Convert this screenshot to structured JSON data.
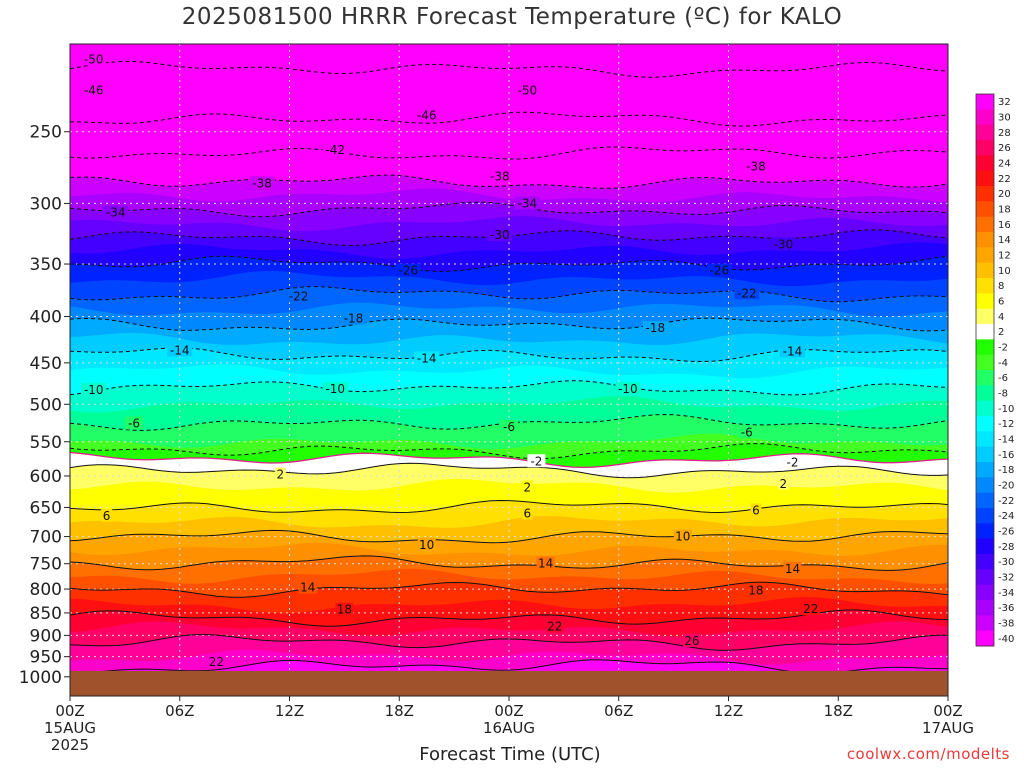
{
  "chart_data": {
    "type": "heatmap",
    "title": "2025081500 HRRR Forecast Temperature (ºC) for KALO",
    "xlabel": "Forecast Time (UTC)",
    "ylabel": "",
    "credit": "coolwx.com/modelts",
    "x_hours_range": [
      0,
      48
    ],
    "x_ticks": [
      {
        "hour": 0,
        "label": "00Z",
        "sub": "15AUG",
        "sub2": "2025"
      },
      {
        "hour": 6,
        "label": "06Z",
        "sub": "",
        "sub2": ""
      },
      {
        "hour": 12,
        "label": "12Z",
        "sub": "",
        "sub2": ""
      },
      {
        "hour": 18,
        "label": "18Z",
        "sub": "",
        "sub2": ""
      },
      {
        "hour": 24,
        "label": "00Z",
        "sub": "16AUG",
        "sub2": ""
      },
      {
        "hour": 30,
        "label": "06Z",
        "sub": "",
        "sub2": ""
      },
      {
        "hour": 36,
        "label": "12Z",
        "sub": "",
        "sub2": ""
      },
      {
        "hour": 42,
        "label": "18Z",
        "sub": "",
        "sub2": ""
      },
      {
        "hour": 48,
        "label": "00Z",
        "sub": "17AUG",
        "sub2": ""
      }
    ],
    "y_axis": "pressure_log",
    "y_ticks": [
      "250",
      "300",
      "350",
      "400",
      "450",
      "500",
      "550",
      "600",
      "650",
      "700",
      "750",
      "800",
      "850",
      "900",
      "950",
      "1000"
    ],
    "y_range_hPa": [
      200,
      1050
    ],
    "ground_level_hPa": 985,
    "ground_color": "#a0522d",
    "colorbar": {
      "labels": [
        "32",
        "30",
        "28",
        "26",
        "24",
        "22",
        "20",
        "18",
        "16",
        "14",
        "12",
        "10",
        "8",
        "6",
        "4",
        "2",
        "-2",
        "-4",
        "-6",
        "-8",
        "-10",
        "-12",
        "-14",
        "-16",
        "-18",
        "-20",
        "-22",
        "-24",
        "-26",
        "-28",
        "-30",
        "-32",
        "-34",
        "-36",
        "-38",
        "-40"
      ],
      "levels": [
        32,
        30,
        28,
        26,
        24,
        22,
        20,
        18,
        16,
        14,
        12,
        10,
        8,
        6,
        4,
        2,
        0,
        -2,
        -4,
        -6,
        -8,
        -10,
        -12,
        -14,
        -16,
        -18,
        -20,
        -22,
        -24,
        -26,
        -28,
        -30,
        -32,
        -34,
        -36,
        -38,
        -40
      ],
      "colors": [
        "#ff00ff",
        "#ff00cc",
        "#ff0099",
        "#ff0066",
        "#ff0033",
        "#ff1010",
        "#ff3000",
        "#ff5000",
        "#ff7000",
        "#ff9000",
        "#ffa500",
        "#ffc000",
        "#ffe000",
        "#ffff00",
        "#ffff66",
        "#ffffff",
        "#22ff00",
        "#44ff22",
        "#22ff66",
        "#00ff99",
        "#00ffcc",
        "#00ffff",
        "#00e8ff",
        "#00ccff",
        "#00aaff",
        "#0088ff",
        "#0066ff",
        "#0044ff",
        "#0022ff",
        "#2200ff",
        "#4400ff",
        "#6600ff",
        "#8800ff",
        "#aa00ff",
        "#cc00ff",
        "#ff00ff"
      ]
    },
    "profile": {
      "pressure_hPa": [
        200,
        250,
        300,
        350,
        400,
        450,
        500,
        550,
        575,
        600,
        650,
        700,
        750,
        800,
        850,
        900,
        950,
        985
      ],
      "temperature_C": [
        -52,
        -45,
        -35,
        -26,
        -19,
        -13,
        -8,
        -4,
        0,
        3,
        6,
        10,
        14,
        18,
        21,
        25,
        28,
        31
      ]
    },
    "isotherm_labels": [
      {
        "hour": 1.3,
        "p": 208,
        "text": "-50"
      },
      {
        "hour": 1.3,
        "p": 225,
        "text": "-46"
      },
      {
        "hour": 25,
        "p": 225,
        "text": "-50"
      },
      {
        "hour": 19.5,
        "p": 240,
        "text": "-46"
      },
      {
        "hour": 14.5,
        "p": 262,
        "text": "-42"
      },
      {
        "hour": 10.5,
        "p": 285,
        "text": "-38"
      },
      {
        "hour": 23.5,
        "p": 280,
        "text": "-38"
      },
      {
        "hour": 37.5,
        "p": 273,
        "text": "-38"
      },
      {
        "hour": 2.5,
        "p": 307,
        "text": "-34"
      },
      {
        "hour": 25,
        "p": 300,
        "text": "-34"
      },
      {
        "hour": 23.5,
        "p": 325,
        "text": "-30"
      },
      {
        "hour": 39,
        "p": 333,
        "text": "-30"
      },
      {
        "hour": 18.5,
        "p": 356,
        "text": "-26"
      },
      {
        "hour": 35.5,
        "p": 356,
        "text": "-26"
      },
      {
        "hour": 12.5,
        "p": 380,
        "text": "-22"
      },
      {
        "hour": 37,
        "p": 377,
        "text": "-22"
      },
      {
        "hour": 15.5,
        "p": 402,
        "text": "-18"
      },
      {
        "hour": 32,
        "p": 412,
        "text": "-18"
      },
      {
        "hour": 6,
        "p": 436,
        "text": "-14"
      },
      {
        "hour": 19.5,
        "p": 445,
        "text": "-14"
      },
      {
        "hour": 39.5,
        "p": 437,
        "text": "-14"
      },
      {
        "hour": 1.3,
        "p": 482,
        "text": "-10"
      },
      {
        "hour": 14.5,
        "p": 481,
        "text": "-10"
      },
      {
        "hour": 30.5,
        "p": 481,
        "text": "-10"
      },
      {
        "hour": 3.5,
        "p": 525,
        "text": "-6"
      },
      {
        "hour": 24,
        "p": 530,
        "text": "-6"
      },
      {
        "hour": 37,
        "p": 537,
        "text": "-6"
      },
      {
        "hour": 25.5,
        "p": 578,
        "text": "-2"
      },
      {
        "hour": 39.5,
        "p": 580,
        "text": "-2"
      },
      {
        "hour": 11.5,
        "p": 598,
        "text": "2"
      },
      {
        "hour": 25,
        "p": 618,
        "text": "2"
      },
      {
        "hour": 39,
        "p": 612,
        "text": "2"
      },
      {
        "hour": 2,
        "p": 664,
        "text": "6"
      },
      {
        "hour": 25,
        "p": 660,
        "text": "6"
      },
      {
        "hour": 37.5,
        "p": 655,
        "text": "6"
      },
      {
        "hour": 19.5,
        "p": 715,
        "text": "10"
      },
      {
        "hour": 33.5,
        "p": 700,
        "text": "10"
      },
      {
        "hour": 26,
        "p": 750,
        "text": "14"
      },
      {
        "hour": 39.5,
        "p": 760,
        "text": "14"
      },
      {
        "hour": 13,
        "p": 797,
        "text": "14"
      },
      {
        "hour": 37.5,
        "p": 803,
        "text": "18"
      },
      {
        "hour": 15,
        "p": 843,
        "text": "18"
      },
      {
        "hour": 40.5,
        "p": 842,
        "text": "22"
      },
      {
        "hour": 26.5,
        "p": 880,
        "text": "22"
      },
      {
        "hour": 34,
        "p": 913,
        "text": "26"
      },
      {
        "hour": 8,
        "p": 963,
        "text": "22"
      }
    ]
  }
}
